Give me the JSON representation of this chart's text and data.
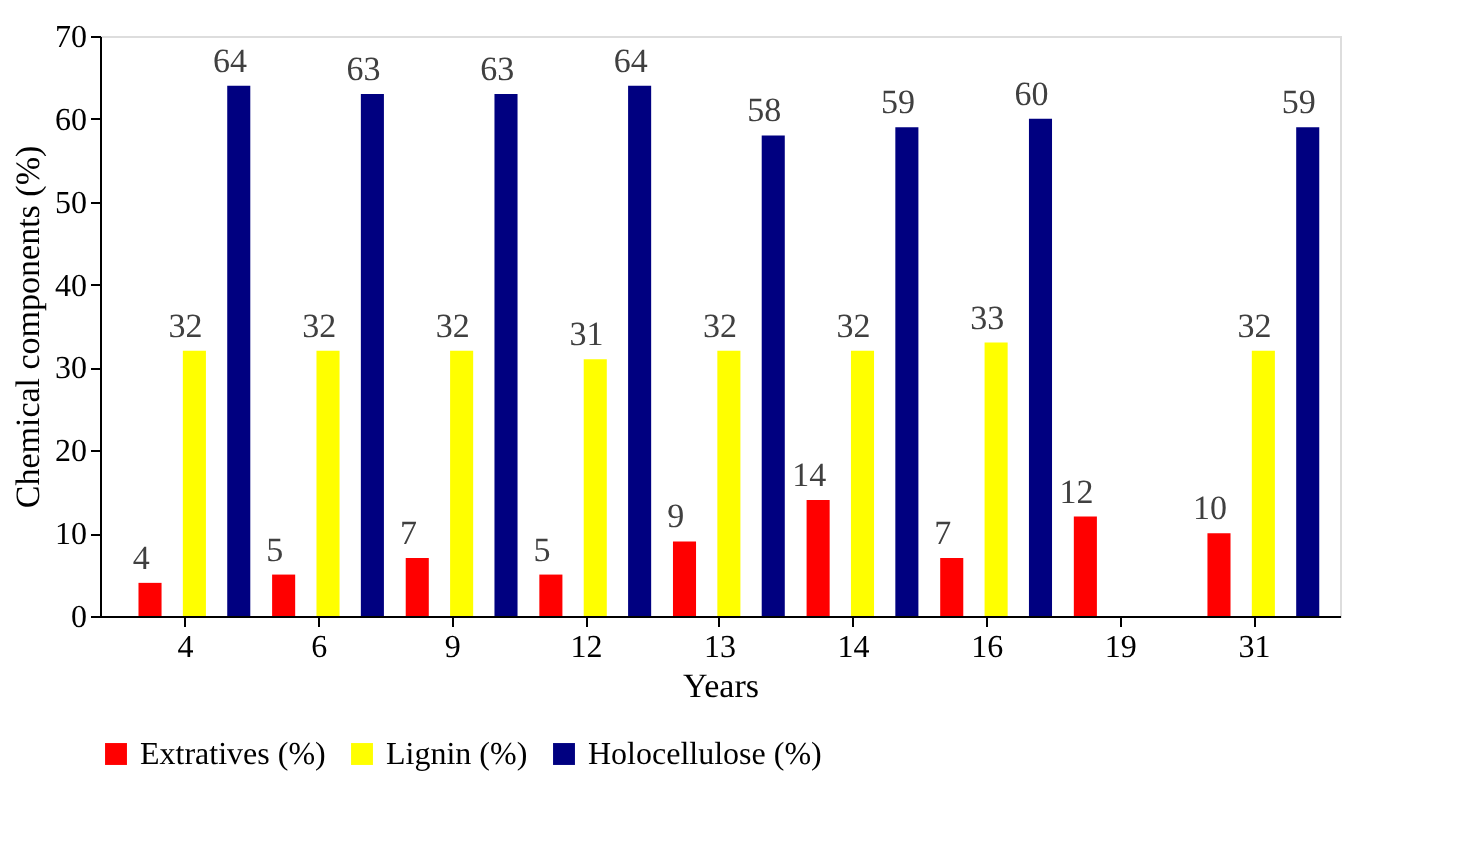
{
  "chart_data": {
    "type": "bar",
    "xlabel": "Years",
    "ylabel": "Chemical components (%)",
    "categories": [
      "4",
      "6",
      "9",
      "12",
      "13",
      "14",
      "16",
      "19",
      "31"
    ],
    "series": [
      {
        "name": "Extratives (%)",
        "color": "#ff0000",
        "values": [
          4,
          5,
          7,
          5,
          9,
          14,
          7,
          12,
          10
        ]
      },
      {
        "name": "Lignin (%)",
        "color": "#ffff00",
        "values": [
          32,
          32,
          32,
          31,
          32,
          32,
          33,
          null,
          32
        ]
      },
      {
        "name": "Holocellulose (%)",
        "color": "#000080",
        "values": [
          64,
          63,
          63,
          64,
          58,
          59,
          60,
          null,
          59
        ]
      }
    ],
    "ylim": [
      0,
      70
    ],
    "yticks": [
      0,
      10,
      20,
      30,
      40,
      50,
      60,
      70
    ],
    "grid": false,
    "legend": "bottom",
    "data_labels": true
  }
}
